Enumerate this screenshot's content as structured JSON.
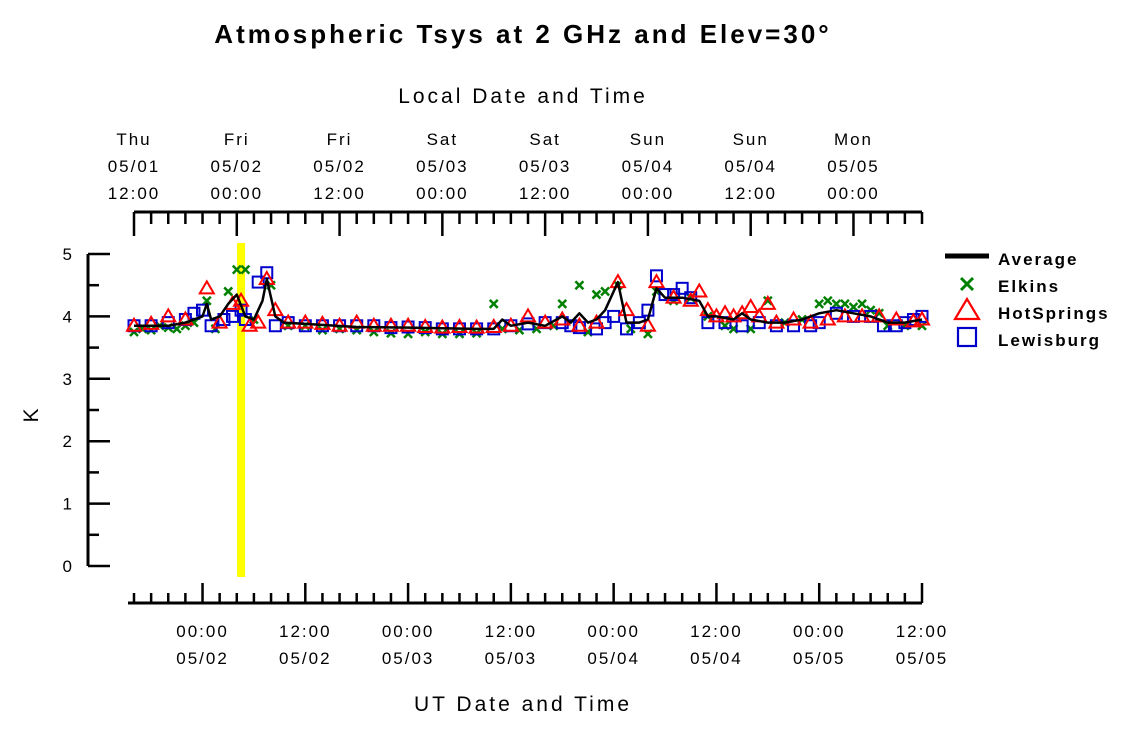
{
  "chart_data": {
    "type": "line",
    "title": "Atmospheric Tsys at 2 GHz and Elev=30°",
    "ylabel": "K",
    "xlabel": "UT Date and Time",
    "top_axis_label": "Local Date and Time",
    "ylim": [
      0,
      5
    ],
    "yticks": [
      "0",
      "1",
      "2",
      "3",
      "4",
      "5"
    ],
    "x_range_ut": [
      "2025-05-01T16:00",
      "2025-05-05T12:00"
    ],
    "bottom_ticks": [
      {
        "time": "00:00",
        "date": "05/02"
      },
      {
        "time": "12:00",
        "date": "05/02"
      },
      {
        "time": "00:00",
        "date": "05/03"
      },
      {
        "time": "12:00",
        "date": "05/03"
      },
      {
        "time": "00:00",
        "date": "05/04"
      },
      {
        "time": "12:00",
        "date": "05/04"
      },
      {
        "time": "00:00",
        "date": "05/05"
      },
      {
        "time": "12:00",
        "date": "05/05"
      }
    ],
    "top_ticks": [
      {
        "day": "Thu",
        "date": "05/01",
        "time": "12:00"
      },
      {
        "day": "Fri",
        "date": "05/02",
        "time": "00:00"
      },
      {
        "day": "Fri",
        "date": "05/02",
        "time": "12:00"
      },
      {
        "day": "Sat",
        "date": "05/03",
        "time": "00:00"
      },
      {
        "day": "Sat",
        "date": "05/03",
        "time": "12:00"
      },
      {
        "day": "Sun",
        "date": "05/04",
        "time": "00:00"
      },
      {
        "day": "Sun",
        "date": "05/04",
        "time": "12:00"
      },
      {
        "day": "Mon",
        "date": "05/05",
        "time": "00:00"
      }
    ],
    "highlight_time_ut": "2025-05-02T04:30",
    "legend_position": "right",
    "series": [
      {
        "name": "Average",
        "marker": "line",
        "color": "#000000",
        "points": [
          [
            "2025-05-01T16:00",
            3.85
          ],
          [
            "2025-05-01T20:00",
            3.85
          ],
          [
            "2025-05-01T22:00",
            3.9
          ],
          [
            "2025-05-02T00:00",
            4.0
          ],
          [
            "2025-05-02T00:30",
            4.2
          ],
          [
            "2025-05-02T01:00",
            3.95
          ],
          [
            "2025-05-02T02:00",
            4.0
          ],
          [
            "2025-05-02T03:00",
            4.2
          ],
          [
            "2025-05-02T04:00",
            4.35
          ],
          [
            "2025-05-02T05:00",
            4.0
          ],
          [
            "2025-05-02T06:00",
            3.95
          ],
          [
            "2025-05-02T07:00",
            4.25
          ],
          [
            "2025-05-02T07:30",
            4.6
          ],
          [
            "2025-05-02T08:30",
            4.0
          ],
          [
            "2025-05-02T09:30",
            3.9
          ],
          [
            "2025-05-02T12:00",
            3.88
          ],
          [
            "2025-05-02T18:00",
            3.83
          ],
          [
            "2025-05-03T00:00",
            3.82
          ],
          [
            "2025-05-03T08:00",
            3.8
          ],
          [
            "2025-05-03T10:00",
            3.8
          ],
          [
            "2025-05-03T11:00",
            3.95
          ],
          [
            "2025-05-03T12:00",
            3.85
          ],
          [
            "2025-05-03T14:00",
            3.9
          ],
          [
            "2025-05-03T16:00",
            3.85
          ],
          [
            "2025-05-03T18:00",
            4.0
          ],
          [
            "2025-05-03T19:00",
            3.9
          ],
          [
            "2025-05-03T20:00",
            4.05
          ],
          [
            "2025-05-03T21:00",
            3.9
          ],
          [
            "2025-05-03T22:00",
            3.95
          ],
          [
            "2025-05-03T23:00",
            4.1
          ],
          [
            "2025-05-04T00:30",
            4.55
          ],
          [
            "2025-05-04T01:30",
            3.9
          ],
          [
            "2025-05-04T03:00",
            3.9
          ],
          [
            "2025-05-04T04:00",
            3.95
          ],
          [
            "2025-05-04T05:00",
            4.45
          ],
          [
            "2025-05-04T06:00",
            4.3
          ],
          [
            "2025-05-04T08:00",
            4.3
          ],
          [
            "2025-05-04T10:00",
            4.25
          ],
          [
            "2025-05-04T11:00",
            4.0
          ],
          [
            "2025-05-04T12:00",
            4.0
          ],
          [
            "2025-05-04T14:00",
            3.95
          ],
          [
            "2025-05-04T15:00",
            4.05
          ],
          [
            "2025-05-04T16:00",
            3.95
          ],
          [
            "2025-05-04T18:00",
            3.9
          ],
          [
            "2025-05-04T20:00",
            3.9
          ],
          [
            "2025-05-04T22:00",
            3.95
          ],
          [
            "2025-05-05T00:00",
            4.05
          ],
          [
            "2025-05-05T02:00",
            4.1
          ],
          [
            "2025-05-05T04:00",
            4.05
          ],
          [
            "2025-05-05T06:00",
            4.0
          ],
          [
            "2025-05-05T08:00",
            3.9
          ],
          [
            "2025-05-05T10:00",
            3.9
          ],
          [
            "2025-05-05T12:00",
            3.95
          ]
        ]
      },
      {
        "name": "Elkins",
        "marker": "x",
        "color": "#008000",
        "points": [
          [
            "2025-05-01T16:00",
            3.75
          ],
          [
            "2025-05-01T17:00",
            3.8
          ],
          [
            "2025-05-01T18:00",
            3.78
          ],
          [
            "2025-05-01T19:00",
            3.85
          ],
          [
            "2025-05-01T20:00",
            3.82
          ],
          [
            "2025-05-01T21:00",
            3.8
          ],
          [
            "2025-05-01T22:00",
            3.85
          ],
          [
            "2025-05-01T23:00",
            3.9
          ],
          [
            "2025-05-02T00:30",
            4.25
          ],
          [
            "2025-05-02T01:30",
            3.8
          ],
          [
            "2025-05-02T03:00",
            4.4
          ],
          [
            "2025-05-02T04:00",
            4.75
          ],
          [
            "2025-05-02T05:00",
            4.75
          ],
          [
            "2025-05-02T06:00",
            3.95
          ],
          [
            "2025-05-02T08:00",
            4.5
          ],
          [
            "2025-05-02T10:00",
            3.85
          ],
          [
            "2025-05-02T12:00",
            3.85
          ],
          [
            "2025-05-02T14:00",
            3.78
          ],
          [
            "2025-05-02T16:00",
            3.8
          ],
          [
            "2025-05-02T18:00",
            3.78
          ],
          [
            "2025-05-02T20:00",
            3.75
          ],
          [
            "2025-05-02T22:00",
            3.73
          ],
          [
            "2025-05-03T00:00",
            3.72
          ],
          [
            "2025-05-03T02:00",
            3.75
          ],
          [
            "2025-05-03T04:00",
            3.72
          ],
          [
            "2025-05-03T06:00",
            3.72
          ],
          [
            "2025-05-03T08:00",
            3.73
          ],
          [
            "2025-05-03T10:00",
            4.2
          ],
          [
            "2025-05-03T11:00",
            3.8
          ],
          [
            "2025-05-03T13:00",
            3.78
          ],
          [
            "2025-05-03T15:00",
            3.8
          ],
          [
            "2025-05-03T17:00",
            3.85
          ],
          [
            "2025-05-03T18:00",
            4.2
          ],
          [
            "2025-05-03T20:00",
            4.5
          ],
          [
            "2025-05-03T21:00",
            3.75
          ],
          [
            "2025-05-03T22:00",
            4.35
          ],
          [
            "2025-05-03T23:00",
            4.4
          ],
          [
            "2025-05-04T00:30",
            4.5
          ],
          [
            "2025-05-04T02:00",
            3.8
          ],
          [
            "2025-05-04T04:00",
            3.72
          ],
          [
            "2025-05-04T05:00",
            4.4
          ],
          [
            "2025-05-04T07:00",
            4.25
          ],
          [
            "2025-05-04T09:00",
            4.3
          ],
          [
            "2025-05-04T11:00",
            4.0
          ],
          [
            "2025-05-04T13:00",
            3.85
          ],
          [
            "2025-05-04T14:00",
            3.8
          ],
          [
            "2025-05-04T16:00",
            3.8
          ],
          [
            "2025-05-04T18:00",
            4.25
          ],
          [
            "2025-05-04T20:00",
            3.9
          ],
          [
            "2025-05-04T22:00",
            3.95
          ],
          [
            "2025-05-05T00:00",
            4.2
          ],
          [
            "2025-05-05T01:00",
            4.25
          ],
          [
            "2025-05-05T02:00",
            4.2
          ],
          [
            "2025-05-05T03:00",
            4.2
          ],
          [
            "2025-05-05T04:00",
            4.15
          ],
          [
            "2025-05-05T05:00",
            4.2
          ],
          [
            "2025-05-05T06:00",
            4.1
          ],
          [
            "2025-05-05T07:00",
            4.05
          ],
          [
            "2025-05-05T08:00",
            3.85
          ],
          [
            "2025-05-05T10:00",
            3.85
          ],
          [
            "2025-05-05T12:00",
            3.85
          ]
        ]
      },
      {
        "name": "HotSprings",
        "marker": "triangle",
        "color": "#ff0000",
        "points": [
          [
            "2025-05-01T16:00",
            3.85
          ],
          [
            "2025-05-01T18:00",
            3.88
          ],
          [
            "2025-05-01T20:00",
            4.0
          ],
          [
            "2025-05-01T22:00",
            3.95
          ],
          [
            "2025-05-02T00:30",
            4.45
          ],
          [
            "2025-05-02T02:00",
            3.9
          ],
          [
            "2025-05-02T03:30",
            4.2
          ],
          [
            "2025-05-02T04:30",
            4.25
          ],
          [
            "2025-05-02T05:30",
            3.85
          ],
          [
            "2025-05-02T06:30",
            3.9
          ],
          [
            "2025-05-02T07:30",
            4.6
          ],
          [
            "2025-05-02T08:30",
            4.1
          ],
          [
            "2025-05-02T10:00",
            3.9
          ],
          [
            "2025-05-02T12:00",
            3.9
          ],
          [
            "2025-05-02T14:00",
            3.88
          ],
          [
            "2025-05-02T16:00",
            3.85
          ],
          [
            "2025-05-02T18:00",
            3.9
          ],
          [
            "2025-05-02T20:00",
            3.85
          ],
          [
            "2025-05-02T22:00",
            3.85
          ],
          [
            "2025-05-03T00:00",
            3.85
          ],
          [
            "2025-05-03T02:00",
            3.83
          ],
          [
            "2025-05-03T04:00",
            3.82
          ],
          [
            "2025-05-03T06:00",
            3.83
          ],
          [
            "2025-05-03T08:00",
            3.82
          ],
          [
            "2025-05-03T10:00",
            3.83
          ],
          [
            "2025-05-03T12:00",
            3.85
          ],
          [
            "2025-05-03T14:00",
            4.0
          ],
          [
            "2025-05-03T16:00",
            3.9
          ],
          [
            "2025-05-03T18:00",
            3.95
          ],
          [
            "2025-05-03T20:00",
            3.85
          ],
          [
            "2025-05-03T22:00",
            3.9
          ],
          [
            "2025-05-04T00:30",
            4.55
          ],
          [
            "2025-05-04T01:30",
            4.1
          ],
          [
            "2025-05-04T04:00",
            3.85
          ],
          [
            "2025-05-04T05:00",
            4.55
          ],
          [
            "2025-05-04T07:00",
            4.3
          ],
          [
            "2025-05-04T09:00",
            4.25
          ],
          [
            "2025-05-04T10:00",
            4.4
          ],
          [
            "2025-05-04T11:00",
            4.1
          ],
          [
            "2025-05-04T12:00",
            4.0
          ],
          [
            "2025-05-04T13:00",
            4.05
          ],
          [
            "2025-05-04T14:00",
            4.0
          ],
          [
            "2025-05-04T15:00",
            4.05
          ],
          [
            "2025-05-04T16:00",
            4.15
          ],
          [
            "2025-05-04T17:00",
            4.0
          ],
          [
            "2025-05-04T18:00",
            4.2
          ],
          [
            "2025-05-04T19:00",
            3.9
          ],
          [
            "2025-05-04T21:00",
            3.95
          ],
          [
            "2025-05-04T23:00",
            3.9
          ],
          [
            "2025-05-05T01:00",
            3.95
          ],
          [
            "2025-05-05T03:00",
            4.0
          ],
          [
            "2025-05-05T05:00",
            4.0
          ],
          [
            "2025-05-05T07:00",
            4.0
          ],
          [
            "2025-05-05T09:00",
            3.95
          ],
          [
            "2025-05-05T11:00",
            3.92
          ],
          [
            "2025-05-05T12:00",
            3.95
          ]
        ]
      },
      {
        "name": "Lewisburg",
        "marker": "square",
        "color": "#0000cc",
        "points": [
          [
            "2025-05-01T16:00",
            3.85
          ],
          [
            "2025-05-01T18:00",
            3.85
          ],
          [
            "2025-05-01T20:00",
            3.9
          ],
          [
            "2025-05-01T22:00",
            3.95
          ],
          [
            "2025-05-01T23:00",
            4.05
          ],
          [
            "2025-05-02T00:00",
            4.1
          ],
          [
            "2025-05-02T01:00",
            3.85
          ],
          [
            "2025-05-02T02:30",
            3.95
          ],
          [
            "2025-05-02T03:30",
            4.0
          ],
          [
            "2025-05-02T04:30",
            4.1
          ],
          [
            "2025-05-02T05:00",
            3.95
          ],
          [
            "2025-05-02T06:30",
            4.55
          ],
          [
            "2025-05-02T07:30",
            4.7
          ],
          [
            "2025-05-02T08:30",
            3.85
          ],
          [
            "2025-05-02T10:00",
            3.9
          ],
          [
            "2025-05-02T12:00",
            3.85
          ],
          [
            "2025-05-02T14:00",
            3.85
          ],
          [
            "2025-05-02T16:00",
            3.85
          ],
          [
            "2025-05-02T18:00",
            3.85
          ],
          [
            "2025-05-02T20:00",
            3.85
          ],
          [
            "2025-05-02T22:00",
            3.82
          ],
          [
            "2025-05-03T00:00",
            3.83
          ],
          [
            "2025-05-03T02:00",
            3.82
          ],
          [
            "2025-05-03T04:00",
            3.8
          ],
          [
            "2025-05-03T06:00",
            3.8
          ],
          [
            "2025-05-03T08:00",
            3.8
          ],
          [
            "2025-05-03T10:00",
            3.8
          ],
          [
            "2025-05-03T12:00",
            3.85
          ],
          [
            "2025-05-03T14:00",
            3.88
          ],
          [
            "2025-05-03T16:00",
            3.9
          ],
          [
            "2025-05-03T18:00",
            3.9
          ],
          [
            "2025-05-03T19:00",
            3.85
          ],
          [
            "2025-05-03T20:00",
            3.82
          ],
          [
            "2025-05-03T22:00",
            3.8
          ],
          [
            "2025-05-03T23:00",
            3.9
          ],
          [
            "2025-05-04T00:00",
            4.0
          ],
          [
            "2025-05-04T01:30",
            3.8
          ],
          [
            "2025-05-04T03:00",
            3.9
          ],
          [
            "2025-05-04T04:00",
            4.1
          ],
          [
            "2025-05-04T05:00",
            4.65
          ],
          [
            "2025-05-04T06:00",
            4.35
          ],
          [
            "2025-05-04T07:00",
            4.35
          ],
          [
            "2025-05-04T08:00",
            4.45
          ],
          [
            "2025-05-04T09:00",
            4.3
          ],
          [
            "2025-05-04T11:00",
            3.9
          ],
          [
            "2025-05-04T13:00",
            3.9
          ],
          [
            "2025-05-04T15:00",
            3.85
          ],
          [
            "2025-05-04T17:00",
            3.9
          ],
          [
            "2025-05-04T19:00",
            3.85
          ],
          [
            "2025-05-04T21:00",
            3.85
          ],
          [
            "2025-05-04T23:00",
            3.85
          ],
          [
            "2025-05-05T00:00",
            3.9
          ],
          [
            "2025-05-05T02:00",
            4.05
          ],
          [
            "2025-05-05T04:00",
            4.0
          ],
          [
            "2025-05-05T06:00",
            4.0
          ],
          [
            "2025-05-05T07:30",
            3.85
          ],
          [
            "2025-05-05T09:00",
            3.85
          ],
          [
            "2025-05-05T10:00",
            3.9
          ],
          [
            "2025-05-05T11:00",
            3.95
          ],
          [
            "2025-05-05T12:00",
            4.0
          ]
        ]
      }
    ]
  }
}
